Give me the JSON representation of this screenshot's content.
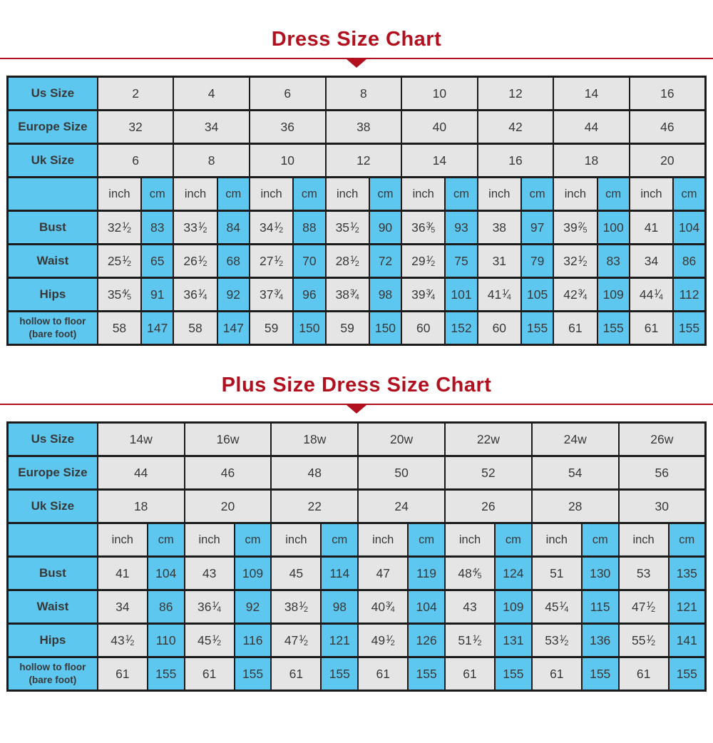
{
  "palette": {
    "accent_red": "#B2101E",
    "cell_blue": "#5EC7EF",
    "cell_gray": "#E5E5E5",
    "border_dark": "#1B1B1B",
    "text_dark": "#383838"
  },
  "chart_data": [
    {
      "type": "table",
      "title": "Dress Size Chart",
      "legend_position": "none",
      "grid": "on",
      "rows": [
        {
          "kind": "size",
          "label": "Us Size",
          "cells": [
            "2",
            "4",
            "6",
            "8",
            "10",
            "12",
            "14",
            "16"
          ]
        },
        {
          "kind": "size",
          "label": "Europe Size",
          "cells": [
            "32",
            "34",
            "36",
            "38",
            "40",
            "42",
            "44",
            "46"
          ]
        },
        {
          "kind": "size",
          "label": "Uk Size",
          "cells": [
            "6",
            "8",
            "10",
            "12",
            "14",
            "16",
            "18",
            "20"
          ]
        },
        {
          "kind": "units",
          "label": "",
          "cells": [
            "inch",
            "cm",
            "inch",
            "cm",
            "inch",
            "cm",
            "inch",
            "cm",
            "inch",
            "cm",
            "inch",
            "cm",
            "inch",
            "cm",
            "inch",
            "cm"
          ]
        },
        {
          "kind": "measure",
          "label": "Bust",
          "cells": [
            "32 1/2",
            "83",
            "33 1/2",
            "84",
            "34 1/2",
            "88",
            "35 1/2",
            "90",
            "36 3/5",
            "93",
            "38",
            "97",
            "39 2/5",
            "100",
            "41",
            "104"
          ]
        },
        {
          "kind": "measure",
          "label": "Waist",
          "cells": [
            "25 1/2",
            "65",
            "26 1/2",
            "68",
            "27 1/2",
            "70",
            "28 1/2",
            "72",
            "29 1/2",
            "75",
            "31",
            "79",
            "32 1/2",
            "83",
            "34",
            "86"
          ]
        },
        {
          "kind": "measure",
          "label": "Hips",
          "cells": [
            "35 4/5",
            "91",
            "36 1/4",
            "92",
            "37 3/4",
            "96",
            "38 3/4",
            "98",
            "39 3/4",
            "101",
            "41 1/4",
            "105",
            "42 3/4",
            "109",
            "44 1/4",
            "112"
          ]
        },
        {
          "kind": "measure",
          "label": "hollow to floor\n(bare foot)",
          "cells": [
            "58",
            "147",
            "58",
            "147",
            "59",
            "150",
            "59",
            "150",
            "60",
            "152",
            "60",
            "155",
            "61",
            "155",
            "61",
            "155"
          ]
        }
      ]
    },
    {
      "type": "table",
      "title": "Plus Size Dress Size Chart",
      "legend_position": "none",
      "grid": "on",
      "rows": [
        {
          "kind": "size",
          "label": "Us Size",
          "cells": [
            "14w",
            "16w",
            "18w",
            "20w",
            "22w",
            "24w",
            "26w"
          ]
        },
        {
          "kind": "size",
          "label": "Europe Size",
          "cells": [
            "44",
            "46",
            "48",
            "50",
            "52",
            "54",
            "56"
          ]
        },
        {
          "kind": "size",
          "label": "Uk Size",
          "cells": [
            "18",
            "20",
            "22",
            "24",
            "26",
            "28",
            "30"
          ]
        },
        {
          "kind": "units",
          "label": "",
          "cells": [
            "inch",
            "cm",
            "inch",
            "cm",
            "inch",
            "cm",
            "inch",
            "cm",
            "inch",
            "cm",
            "inch",
            "cm",
            "inch",
            "cm"
          ]
        },
        {
          "kind": "measure",
          "label": "Bust",
          "cells": [
            "41",
            "104",
            "43",
            "109",
            "45",
            "114",
            "47",
            "119",
            "48 4/5",
            "124",
            "51",
            "130",
            "53",
            "135"
          ]
        },
        {
          "kind": "measure",
          "label": "Waist",
          "cells": [
            "34",
            "86",
            "36 1/4",
            "92",
            "38 1/2",
            "98",
            "40 3/4",
            "104",
            "43",
            "109",
            "45 1/4",
            "115",
            "47 1/2",
            "121"
          ]
        },
        {
          "kind": "measure",
          "label": "Hips",
          "cells": [
            "43 1/2",
            "110",
            "45 1/2",
            "116",
            "47 1/2",
            "121",
            "49 1/2",
            "126",
            "51 1/2",
            "131",
            "53 1/2",
            "136",
            "55 1/2",
            "141"
          ]
        },
        {
          "kind": "measure",
          "label": "hollow to floor\n(bare foot)",
          "cells": [
            "61",
            "155",
            "61",
            "155",
            "61",
            "155",
            "61",
            "155",
            "61",
            "155",
            "61",
            "155",
            "61",
            "155"
          ]
        }
      ]
    }
  ]
}
